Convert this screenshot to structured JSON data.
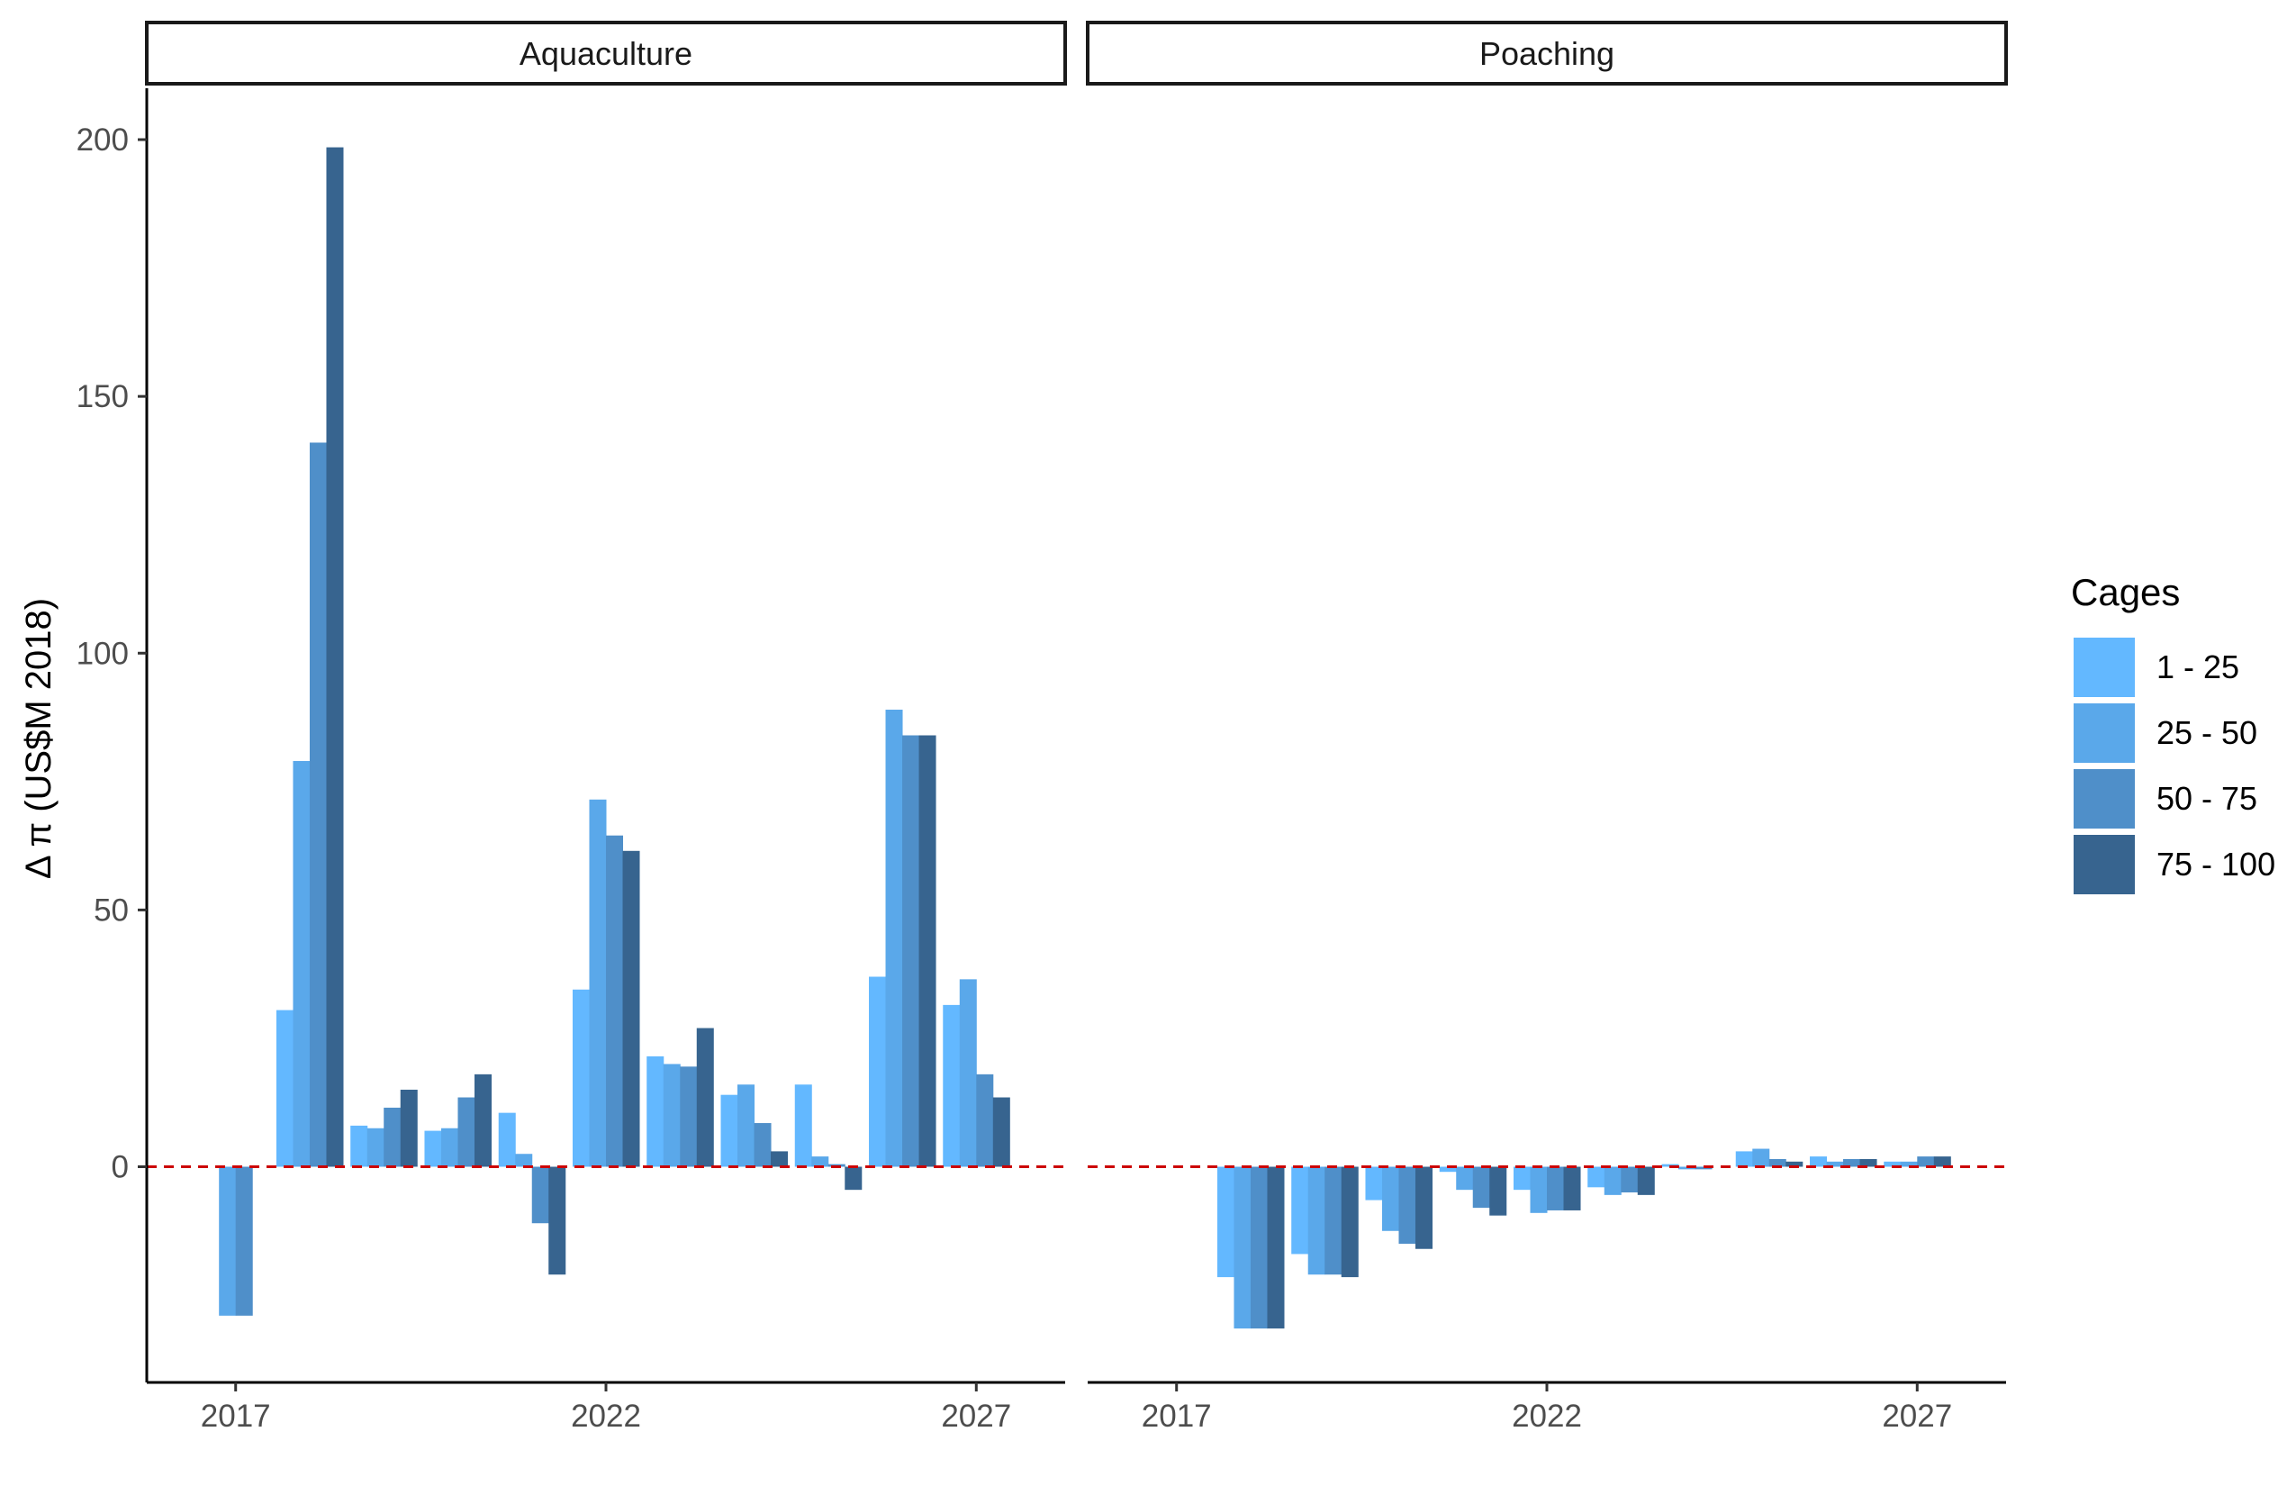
{
  "chart_data": {
    "type": "bar",
    "title": "",
    "ylabel": "Δ π (US$M 2018)",
    "xlabel": "",
    "ylim": [
      -42,
      210
    ],
    "xlim": [
      2015.8,
      2028.2
    ],
    "y_ticks": [
      0,
      50,
      100,
      150,
      200
    ],
    "x_ticks": [
      2017,
      2022,
      2027
    ],
    "grid": false,
    "reference_line": {
      "y": 0,
      "color": "#cc0000",
      "style": "dashed"
    },
    "legend": {
      "title": "Cages",
      "position": "right",
      "entries": [
        {
          "label": "1 - 25",
          "color": "#63b8ff"
        },
        {
          "label": "25 - 50",
          "color": "#5aa8ea"
        },
        {
          "label": "50 - 75",
          "color": "#4f8fc9"
        },
        {
          "label": "75 - 100",
          "color": "#37648f"
        }
      ]
    },
    "panels": [
      {
        "name": "Aquaculture",
        "categories": [
          2017,
          2018,
          2019,
          2020,
          2021,
          2022,
          2023,
          2024,
          2025,
          2026,
          2027
        ],
        "series": [
          {
            "name": "1 - 25",
            "values": [
              0,
              30.5,
              8,
              7,
              10.5,
              34.5,
              21.5,
              14,
              16,
              37,
              31.5
            ]
          },
          {
            "name": "25 - 50",
            "values": [
              -29,
              79,
              7.5,
              7.5,
              2.5,
              71.5,
              20,
              16,
              2,
              89,
              36.5
            ]
          },
          {
            "name": "50 - 75",
            "values": [
              -29,
              141,
              11.5,
              13.5,
              -11,
              64.5,
              19.5,
              8.5,
              0.5,
              84,
              18
            ]
          },
          {
            "name": "75 - 100",
            "values": [
              0,
              198.5,
              15,
              18,
              -21,
              61.5,
              27,
              3,
              -4.5,
              84,
              13.5
            ]
          }
        ]
      },
      {
        "name": "Poaching",
        "categories": [
          2017,
          2018,
          2019,
          2020,
          2021,
          2022,
          2023,
          2024,
          2025,
          2026,
          2027
        ],
        "series": [
          {
            "name": "1 - 25",
            "values": [
              0,
              -21.5,
              -17,
              -6.5,
              -1,
              -4.5,
              -4,
              0.5,
              3,
              2,
              1
            ]
          },
          {
            "name": "25 - 50",
            "values": [
              0,
              -31.5,
              -21,
              -12.5,
              -4.5,
              -9,
              -5.5,
              -0.5,
              3.5,
              1,
              1
            ]
          },
          {
            "name": "50 - 75",
            "values": [
              0,
              -31.5,
              -21,
              -15,
              -8,
              -8.5,
              -5,
              -0.5,
              1.5,
              1.5,
              2
            ]
          },
          {
            "name": "75 - 100",
            "values": [
              0,
              -31.5,
              -21.5,
              -16,
              -9.5,
              -8.5,
              -5.5,
              0,
              1,
              1.5,
              2
            ]
          }
        ]
      }
    ]
  }
}
